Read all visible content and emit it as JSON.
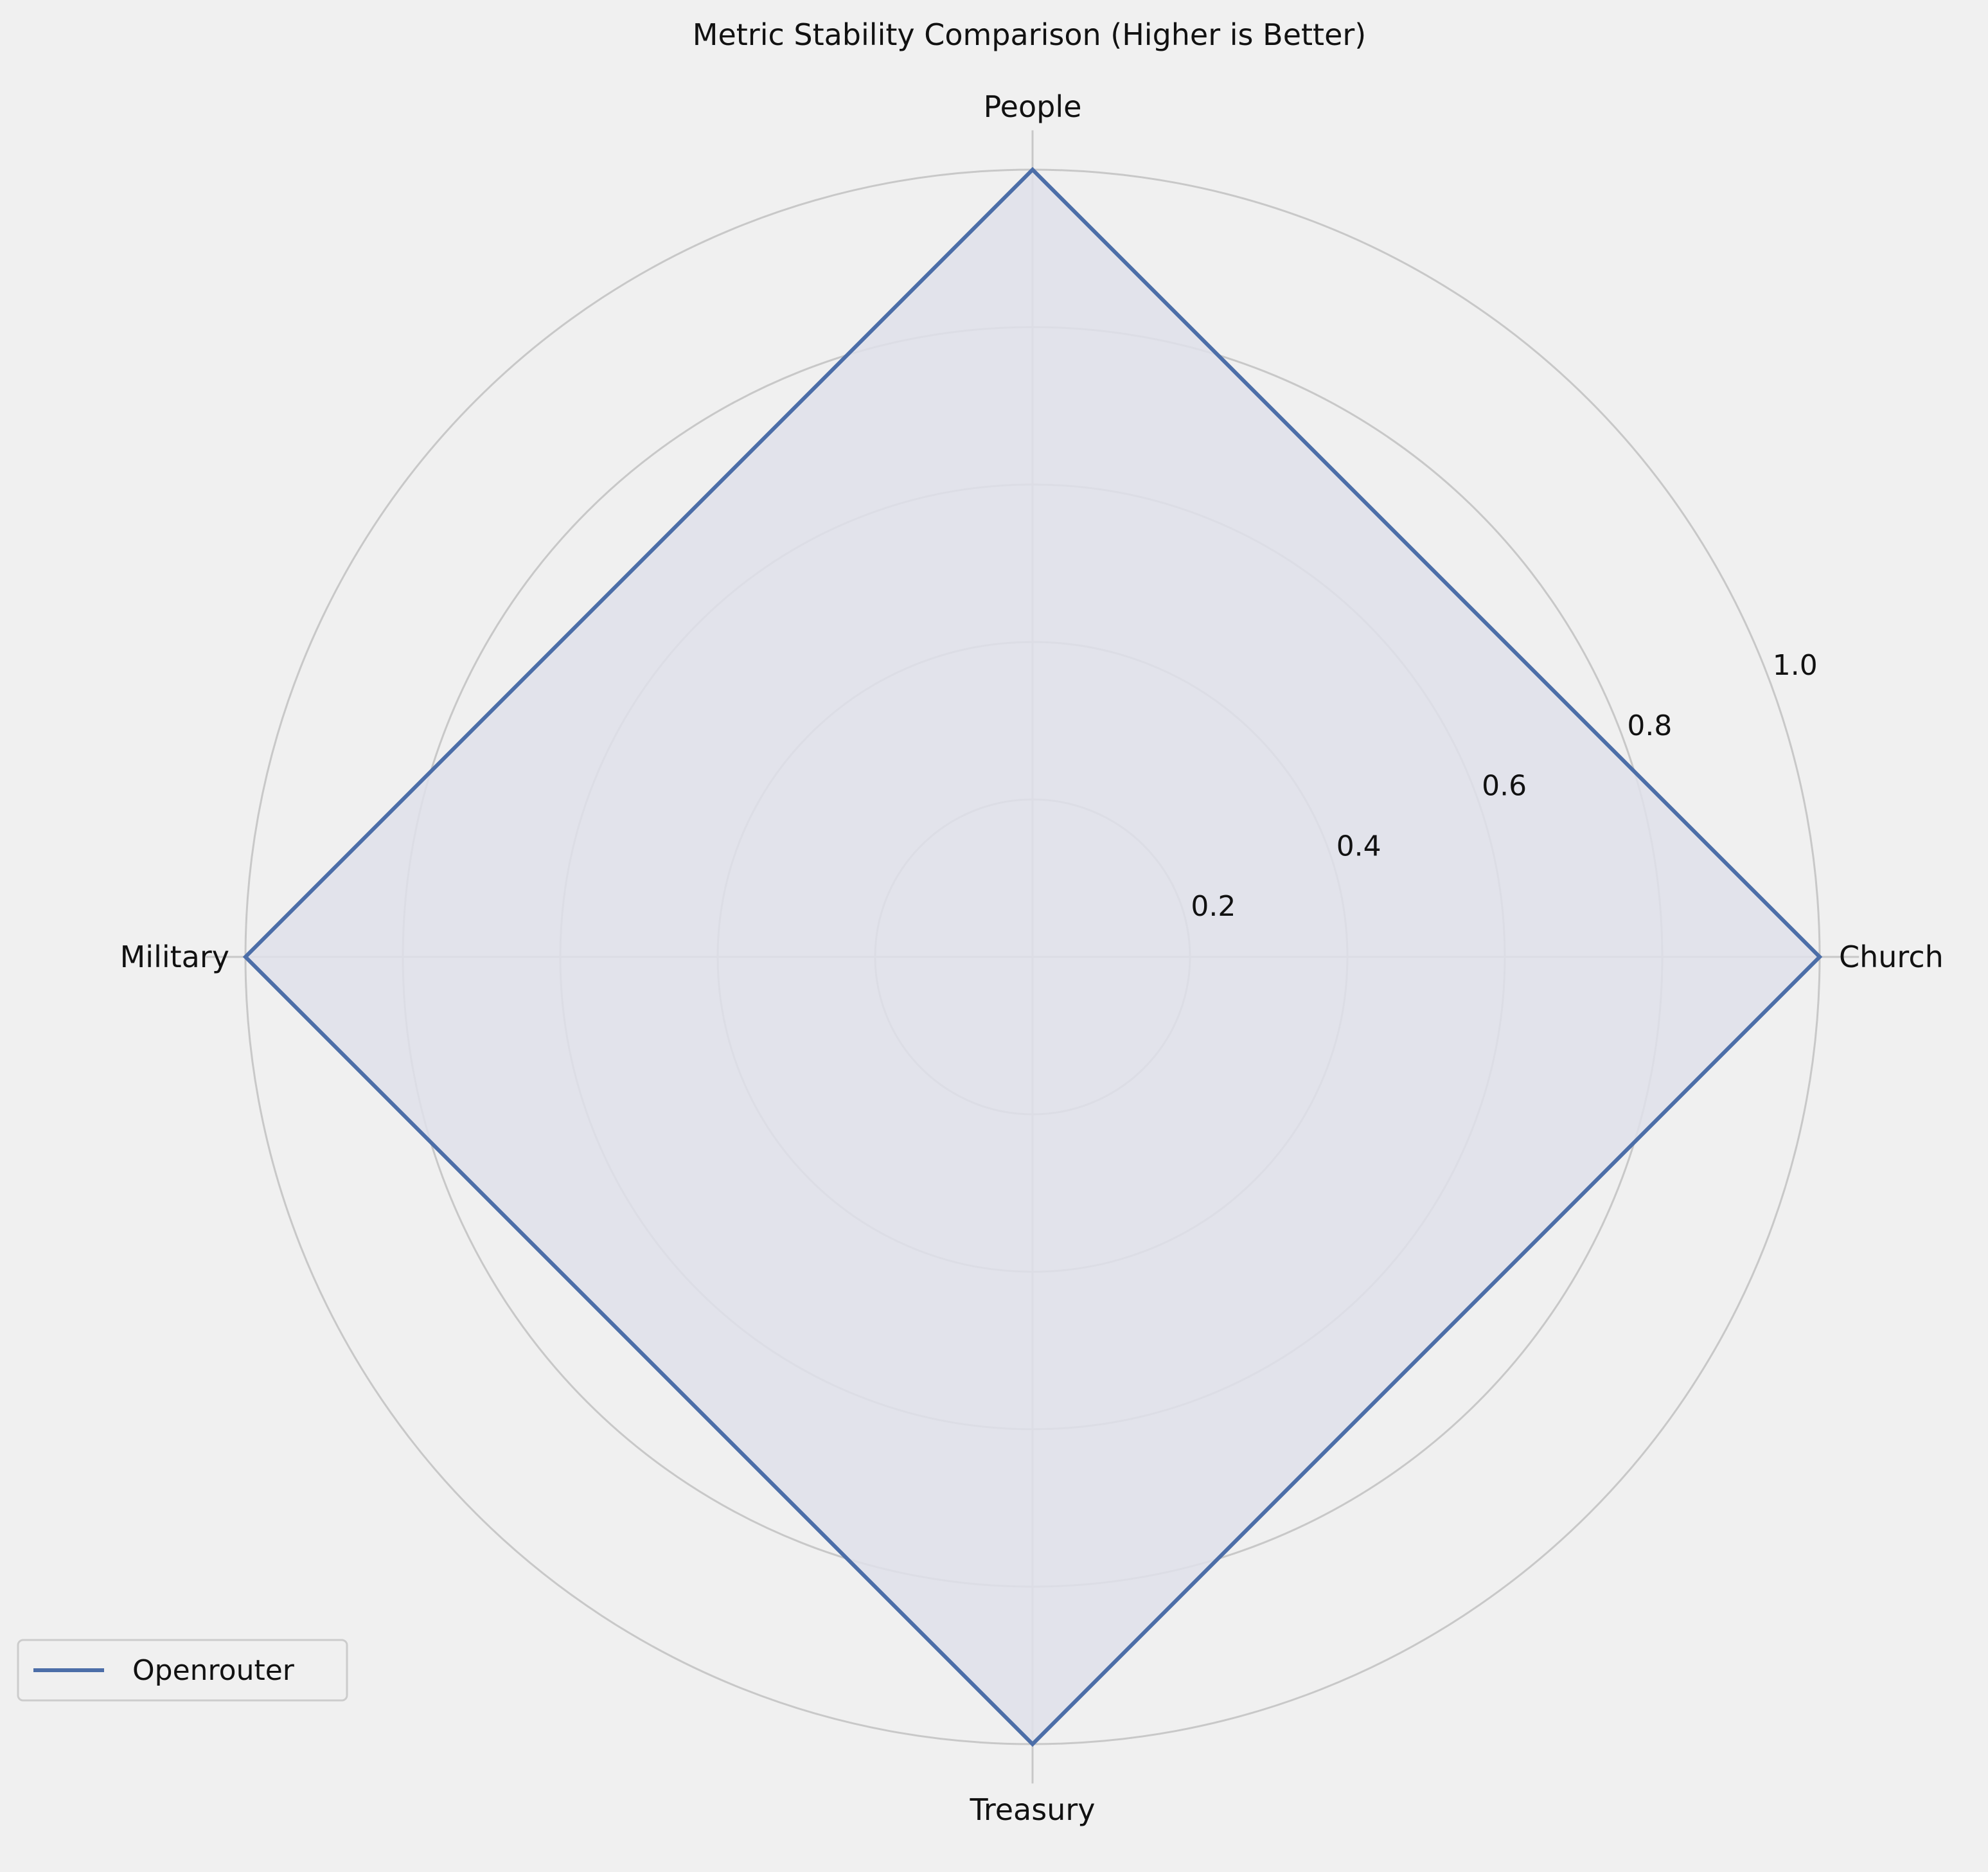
{
  "chart_data": {
    "type": "radar",
    "title": "Metric Stability Comparison (Higher is Better)",
    "categories": [
      "Church",
      "People",
      "Military",
      "Treasury"
    ],
    "series": [
      {
        "name": "Openrouter",
        "values": [
          1.0,
          1.0,
          1.0,
          1.0
        ]
      }
    ],
    "rlim": [
      0,
      1.0
    ],
    "rticks": [
      0.2,
      0.4,
      0.6,
      0.8,
      1.0
    ],
    "rtick_labels": [
      "0.2",
      "0.4",
      "0.6",
      "0.8",
      "1.0"
    ],
    "grid": true,
    "legend_position": "lower-left",
    "colors": {
      "series": "#4c6ea8",
      "fill": "#dfe1ea",
      "grid": "#c8c8c8",
      "background": "#f0f0f0"
    }
  }
}
